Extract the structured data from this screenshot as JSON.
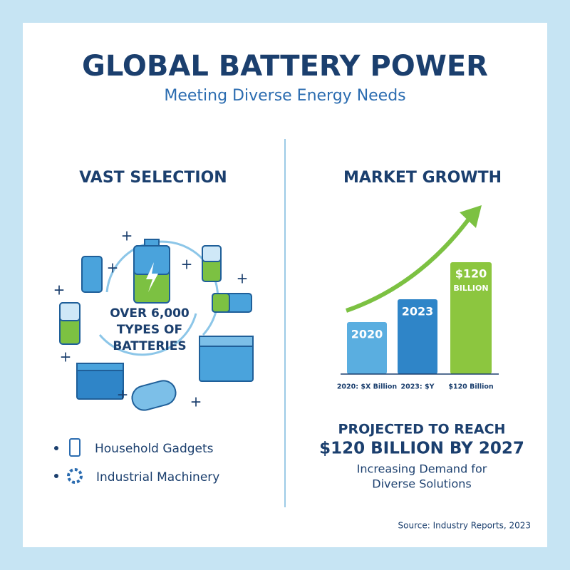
{
  "header": {
    "title": "GLOBAL BATTERY POWER",
    "subtitle": "Meeting Diverse Energy Needs"
  },
  "left": {
    "heading": "VAST SELECTION",
    "center_text": [
      "OVER 6,000",
      "TYPES OF",
      "BATTERIES"
    ],
    "bullets": [
      "Household Gadgets",
      "Industrial Machinery"
    ]
  },
  "right": {
    "heading": "MARKET GROWTH",
    "bars": [
      {
        "label": [
          "2020"
        ],
        "caption": "2020: $X Billion"
      },
      {
        "label": [
          "2023"
        ],
        "caption": "2023: $Y"
      },
      {
        "label": [
          "$120",
          "BILLION"
        ],
        "caption": "$120 Billion"
      }
    ],
    "projection": [
      "PROJECTED TO REACH",
      "$120 BILLION BY 2027"
    ],
    "note": [
      "Increasing Demand for",
      "Diverse Solutions"
    ]
  },
  "source": "Source: Industry Reports, 2023"
}
